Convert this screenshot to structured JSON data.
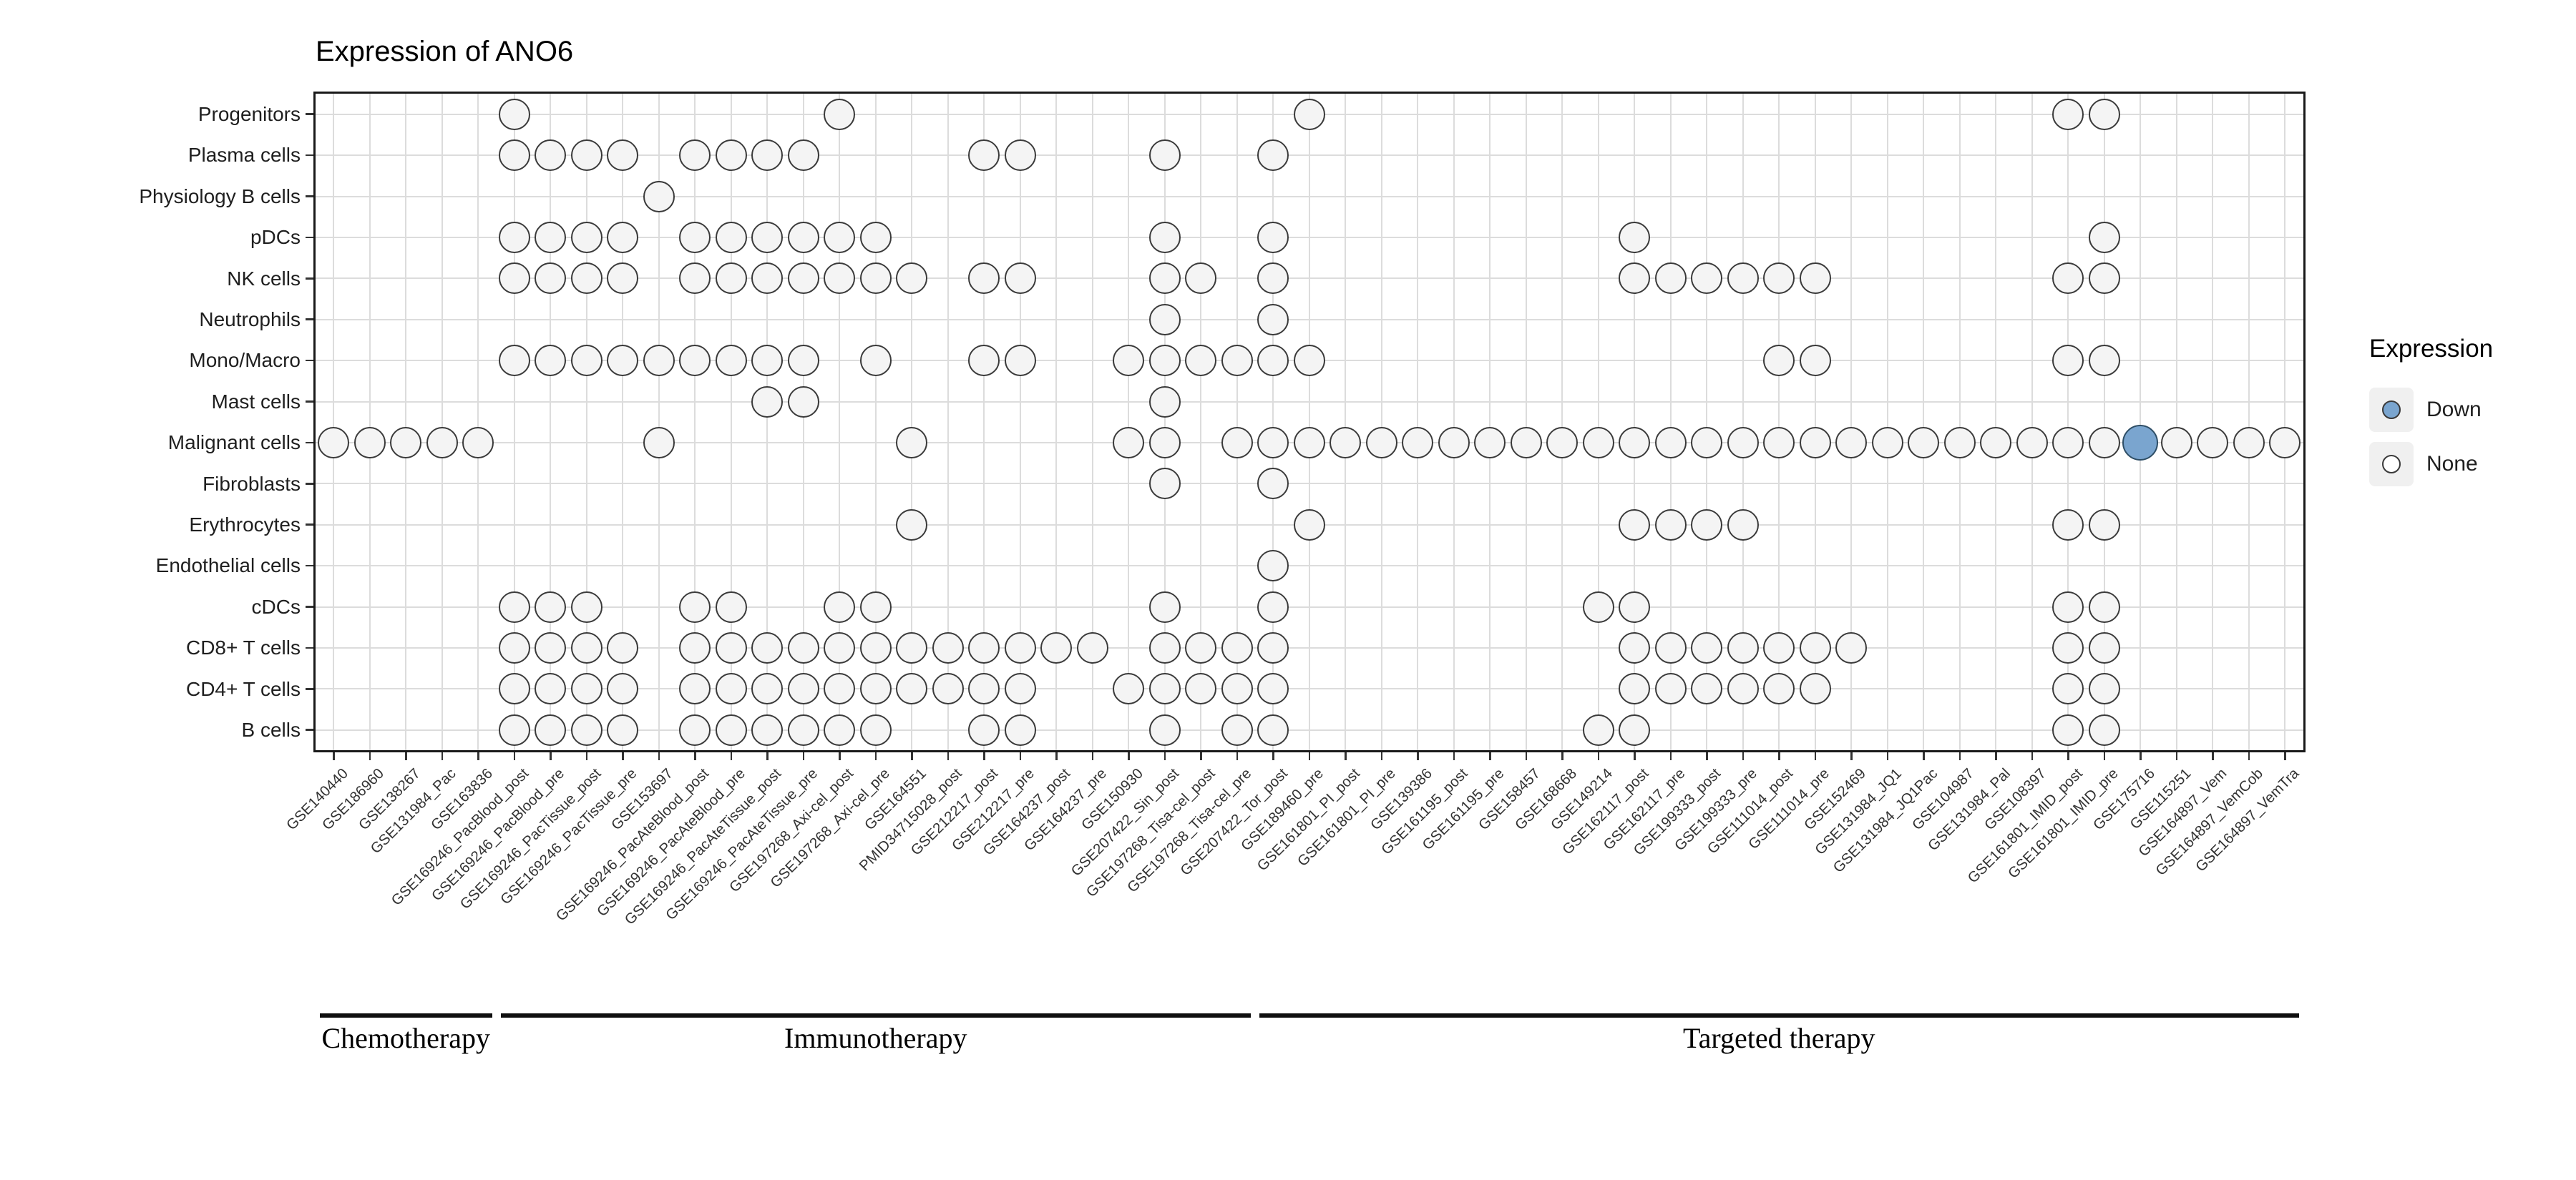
{
  "title": "Expression of ANO6",
  "legend": {
    "title": "Expression",
    "items": [
      {
        "label": "Down",
        "fill": "#7AA5CF"
      },
      {
        "label": "None",
        "fill": "#FFFFFF"
      }
    ],
    "position": "right"
  },
  "colors": {
    "down_fill": "#7AA5CF",
    "none_fill": "#F4F4F4",
    "dot_stroke": "#3A3A3A",
    "grid": "#DCDCDC",
    "panel_border": "#191919",
    "legend_key_bg": "#F0F0F0"
  },
  "chart_data": {
    "type": "heatmap",
    "subtype": "presence-dot-matrix",
    "title": "Expression of ANO6",
    "xlabel": "",
    "ylabel": "",
    "grid": true,
    "legend_position": "right",
    "x_tick_rotation": 45,
    "rows": [
      "Progenitors",
      "Plasma cells",
      "Physiology B cells",
      "pDCs",
      "NK cells",
      "Neutrophils",
      "Mono/Macro",
      "Mast cells",
      "Malignant cells",
      "Fibroblasts",
      "Erythrocytes",
      "Endothelial cells",
      "cDCs",
      "CD8+ T cells",
      "CD4+ T cells",
      "B cells"
    ],
    "columns": [
      "GSE140440",
      "GSE186960",
      "GSE138267",
      "GSE131984_Pac",
      "GSE163836",
      "GSE169246_PacBlood_post",
      "GSE169246_PacBlood_pre",
      "GSE169246_PacTissue_post",
      "GSE169246_PacTissue_pre",
      "GSE153697",
      "GSE169246_PacAteBlood_post",
      "GSE169246_PacAteBlood_pre",
      "GSE169246_PacAteTissue_post",
      "GSE169246_PacAteTissue_pre",
      "GSE197268_Axi-cel_post",
      "GSE197268_Axi-cel_pre",
      "GSE164551",
      "PMID34715028_post",
      "GSE212217_post",
      "GSE212217_pre",
      "GSE164237_post",
      "GSE164237_pre",
      "GSE150930",
      "GSE207422_Sin_post",
      "GSE197268_Tisa-cel_post",
      "GSE197268_Tisa-cel_pre",
      "GSE207422_Tor_post",
      "GSE189460_pre",
      "GSE161801_PI_post",
      "GSE161801_PI_pre",
      "GSE139386",
      "GSE161195_post",
      "GSE161195_pre",
      "GSE158457",
      "GSE168668",
      "GSE149214",
      "GSE162117_post",
      "GSE162117_pre",
      "GSE199333_post",
      "GSE199333_pre",
      "GSE111014_post",
      "GSE111014_pre",
      "GSE152469",
      "GSE131984_JQ1",
      "GSE131984_JQ1Pac",
      "GSE104987",
      "GSE131984_Pal",
      "GSE108397",
      "GSE161801_IMID_post",
      "GSE161801_IMID_pre",
      "GSE175716",
      "GSE115251",
      "GSE164897_Vem",
      "GSE164897_VemCob",
      "GSE164897_VemTra"
    ],
    "groups": [
      {
        "label": "Chemotherapy",
        "start": 1,
        "end": 5
      },
      {
        "label": "Immunotherapy",
        "start": 6,
        "end": 26
      },
      {
        "label": "Targeted therapy",
        "start": 27,
        "end": 55
      }
    ],
    "dots": {
      "Progenitors": [
        6,
        15,
        28,
        49,
        50
      ],
      "Plasma cells": [
        6,
        7,
        8,
        9,
        11,
        12,
        13,
        14,
        19,
        20,
        24,
        27
      ],
      "Physiology B cells": [
        10
      ],
      "pDCs": [
        6,
        7,
        8,
        9,
        11,
        12,
        13,
        14,
        15,
        16,
        24,
        27,
        37,
        50
      ],
      "NK cells": [
        6,
        7,
        8,
        9,
        11,
        12,
        13,
        14,
        15,
        16,
        17,
        19,
        20,
        24,
        25,
        27,
        37,
        38,
        39,
        40,
        41,
        42,
        49,
        50
      ],
      "Neutrophils": [
        24,
        27
      ],
      "Mono/Macro": [
        6,
        7,
        8,
        9,
        10,
        11,
        12,
        13,
        14,
        16,
        19,
        20,
        23,
        24,
        25,
        26,
        27,
        28,
        41,
        42,
        49,
        50
      ],
      "Mast cells": [
        13,
        14,
        24
      ],
      "Malignant cells": [
        1,
        2,
        3,
        4,
        5,
        10,
        17,
        23,
        24,
        26,
        27,
        28,
        29,
        30,
        31,
        32,
        33,
        34,
        35,
        36,
        37,
        38,
        39,
        40,
        41,
        42,
        43,
        44,
        45,
        46,
        47,
        48,
        49,
        50,
        52,
        53,
        54,
        55
      ],
      "Fibroblasts": [
        24,
        27
      ],
      "Erythrocytes": [
        17,
        28,
        37,
        38,
        39,
        40,
        49,
        50
      ],
      "Endothelial cells": [
        27
      ],
      "cDCs": [
        6,
        7,
        8,
        11,
        12,
        15,
        16,
        24,
        27,
        36,
        37,
        49,
        50
      ],
      "CD8+ T cells": [
        6,
        7,
        8,
        9,
        11,
        12,
        13,
        14,
        15,
        16,
        17,
        18,
        19,
        20,
        21,
        22,
        24,
        25,
        26,
        27,
        37,
        38,
        39,
        40,
        41,
        42,
        43,
        49,
        50
      ],
      "CD4+ T cells": [
        6,
        7,
        8,
        9,
        11,
        12,
        13,
        14,
        15,
        16,
        17,
        18,
        19,
        20,
        23,
        24,
        25,
        26,
        27,
        37,
        38,
        39,
        40,
        41,
        42,
        49,
        50
      ],
      "B cells": [
        6,
        7,
        8,
        9,
        11,
        12,
        13,
        14,
        15,
        16,
        19,
        20,
        24,
        26,
        27,
        36,
        37,
        49,
        50
      ]
    },
    "down_dots": [
      {
        "row": "Malignant cells",
        "column": "GSE175716",
        "value": "Down"
      }
    ]
  }
}
